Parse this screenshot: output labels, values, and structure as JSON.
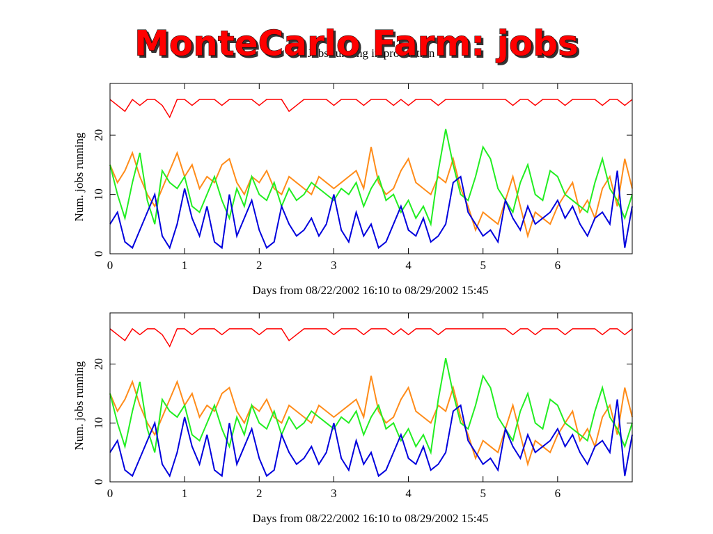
{
  "title": "MonteCarlo Farm: jobs",
  "chart_data": [
    {
      "type": "line",
      "title": "Jobs running in production",
      "xlabel": "Days from 08/22/2002 16:10 to 08/29/2002 15:45",
      "ylabel": "Num. jobs running",
      "xlim": [
        0,
        7
      ],
      "ylim": [
        0,
        28.7
      ],
      "xticks": [
        0,
        1,
        2,
        3,
        4,
        5,
        6
      ],
      "yticks": [
        0,
        10,
        20
      ],
      "x": [
        0,
        0.1,
        0.2,
        0.3,
        0.4,
        0.5,
        0.6,
        0.7,
        0.8,
        0.9,
        1,
        1.1,
        1.2,
        1.3,
        1.4,
        1.5,
        1.6,
        1.7,
        1.8,
        1.9,
        2,
        2.1,
        2.2,
        2.3,
        2.4,
        2.5,
        2.6,
        2.7,
        2.8,
        2.9,
        3,
        3.1,
        3.2,
        3.3,
        3.4,
        3.5,
        3.6,
        3.7,
        3.8,
        3.9,
        4,
        4.1,
        4.2,
        4.3,
        4.4,
        4.5,
        4.6,
        4.7,
        4.8,
        4.9,
        5,
        5.1,
        5.2,
        5.3,
        5.4,
        5.5,
        5.6,
        5.7,
        5.8,
        5.9,
        6,
        6.1,
        6.2,
        6.3,
        6.4,
        6.5,
        6.6,
        6.7,
        6.8,
        6.9,
        7
      ],
      "series": [
        {
          "color": "#ff0000",
          "values": [
            26,
            25,
            24,
            26,
            25,
            26,
            26,
            25,
            23,
            26,
            26,
            25,
            26,
            26,
            26,
            25,
            26,
            26,
            26,
            26,
            25,
            26,
            26,
            26,
            24,
            25,
            26,
            26,
            26,
            26,
            25,
            26,
            26,
            26,
            25,
            26,
            26,
            26,
            25,
            26,
            25,
            26,
            26,
            26,
            25,
            26,
            26,
            26,
            26,
            26,
            26,
            26,
            26,
            26,
            25,
            26,
            26,
            25,
            26,
            26,
            26,
            25,
            26,
            26,
            26,
            26,
            25,
            26,
            26,
            25,
            26
          ]
        },
        {
          "color": "#ff8c1a",
          "values": [
            15,
            12,
            14,
            17,
            13,
            10,
            8,
            11,
            14,
            17,
            13,
            15,
            11,
            13,
            12,
            15,
            16,
            12,
            10,
            13,
            12,
            14,
            11,
            10,
            13,
            12,
            11,
            10,
            13,
            12,
            11,
            12,
            13,
            14,
            11,
            18,
            12,
            10,
            11,
            14,
            16,
            12,
            11,
            10,
            13,
            12,
            16,
            11,
            8,
            4,
            7,
            6,
            5,
            9,
            13,
            8,
            3,
            7,
            6,
            5,
            8,
            10,
            12,
            7,
            9,
            6,
            11,
            13,
            8,
            16,
            11
          ]
        },
        {
          "color": "#22ee22",
          "values": [
            15,
            10,
            6,
            12,
            17,
            9,
            5,
            14,
            12,
            11,
            13,
            8,
            7,
            10,
            13,
            9,
            6,
            11,
            8,
            13,
            10,
            9,
            12,
            8,
            11,
            9,
            10,
            12,
            11,
            10,
            9,
            11,
            10,
            12,
            8,
            11,
            13,
            9,
            10,
            7,
            9,
            6,
            8,
            5,
            14,
            21,
            15,
            10,
            9,
            13,
            18,
            16,
            11,
            9,
            7,
            12,
            15,
            10,
            9,
            14,
            13,
            10,
            9,
            8,
            7,
            12,
            16,
            11,
            9,
            6,
            10
          ]
        },
        {
          "color": "#0000dd",
          "values": [
            5,
            7,
            2,
            1,
            4,
            7,
            10,
            3,
            1,
            5,
            11,
            6,
            3,
            8,
            2,
            1,
            10,
            3,
            6,
            9,
            4,
            1,
            2,
            8,
            5,
            3,
            4,
            6,
            3,
            5,
            10,
            4,
            2,
            7,
            3,
            5,
            1,
            2,
            5,
            8,
            4,
            3,
            6,
            2,
            3,
            5,
            12,
            13,
            7,
            5,
            3,
            4,
            2,
            9,
            6,
            4,
            8,
            5,
            6,
            7,
            9,
            6,
            8,
            5,
            3,
            6,
            7,
            5,
            14,
            1,
            8
          ]
        }
      ]
    },
    {
      "type": "line",
      "xlabel": "Days from 08/22/2002 16:10 to 08/29/2002 15:45",
      "ylabel": "Num. jobs running",
      "xlim": [
        0,
        7
      ],
      "ylim": [
        0,
        28.7
      ],
      "xticks": [
        0,
        1,
        2,
        3,
        4,
        5,
        6
      ],
      "yticks": [
        0,
        10,
        20
      ],
      "x": [
        0,
        0.1,
        0.2,
        0.3,
        0.4,
        0.5,
        0.6,
        0.7,
        0.8,
        0.9,
        1,
        1.1,
        1.2,
        1.3,
        1.4,
        1.5,
        1.6,
        1.7,
        1.8,
        1.9,
        2,
        2.1,
        2.2,
        2.3,
        2.4,
        2.5,
        2.6,
        2.7,
        2.8,
        2.9,
        3,
        3.1,
        3.2,
        3.3,
        3.4,
        3.5,
        3.6,
        3.7,
        3.8,
        3.9,
        4,
        4.1,
        4.2,
        4.3,
        4.4,
        4.5,
        4.6,
        4.7,
        4.8,
        4.9,
        5,
        5.1,
        5.2,
        5.3,
        5.4,
        5.5,
        5.6,
        5.7,
        5.8,
        5.9,
        6,
        6.1,
        6.2,
        6.3,
        6.4,
        6.5,
        6.6,
        6.7,
        6.8,
        6.9,
        7
      ],
      "series": [
        {
          "color": "#ff0000",
          "values": [
            26,
            25,
            24,
            26,
            25,
            26,
            26,
            25,
            23,
            26,
            26,
            25,
            26,
            26,
            26,
            25,
            26,
            26,
            26,
            26,
            25,
            26,
            26,
            26,
            24,
            25,
            26,
            26,
            26,
            26,
            25,
            26,
            26,
            26,
            25,
            26,
            26,
            26,
            25,
            26,
            25,
            26,
            26,
            26,
            25,
            26,
            26,
            26,
            26,
            26,
            26,
            26,
            26,
            26,
            25,
            26,
            26,
            25,
            26,
            26,
            26,
            25,
            26,
            26,
            26,
            26,
            25,
            26,
            26,
            25,
            26
          ]
        },
        {
          "color": "#ff8c1a",
          "values": [
            15,
            12,
            14,
            17,
            13,
            10,
            8,
            11,
            14,
            17,
            13,
            15,
            11,
            13,
            12,
            15,
            16,
            12,
            10,
            13,
            12,
            14,
            11,
            10,
            13,
            12,
            11,
            10,
            13,
            12,
            11,
            12,
            13,
            14,
            11,
            18,
            12,
            10,
            11,
            14,
            16,
            12,
            11,
            10,
            13,
            12,
            16,
            11,
            8,
            4,
            7,
            6,
            5,
            9,
            13,
            8,
            3,
            7,
            6,
            5,
            8,
            10,
            12,
            7,
            9,
            6,
            11,
            13,
            8,
            16,
            11
          ]
        },
        {
          "color": "#22ee22",
          "values": [
            15,
            10,
            6,
            12,
            17,
            9,
            5,
            14,
            12,
            11,
            13,
            8,
            7,
            10,
            13,
            9,
            6,
            11,
            8,
            13,
            10,
            9,
            12,
            8,
            11,
            9,
            10,
            12,
            11,
            10,
            9,
            11,
            10,
            12,
            8,
            11,
            13,
            9,
            10,
            7,
            9,
            6,
            8,
            5,
            14,
            21,
            15,
            10,
            9,
            13,
            18,
            16,
            11,
            9,
            7,
            12,
            15,
            10,
            9,
            14,
            13,
            10,
            9,
            8,
            7,
            12,
            16,
            11,
            9,
            6,
            10
          ]
        },
        {
          "color": "#0000dd",
          "values": [
            5,
            7,
            2,
            1,
            4,
            7,
            10,
            3,
            1,
            5,
            11,
            6,
            3,
            8,
            2,
            1,
            10,
            3,
            6,
            9,
            4,
            1,
            2,
            8,
            5,
            3,
            4,
            6,
            3,
            5,
            10,
            4,
            2,
            7,
            3,
            5,
            1,
            2,
            5,
            8,
            4,
            3,
            6,
            2,
            3,
            5,
            12,
            13,
            7,
            5,
            3,
            4,
            2,
            9,
            6,
            4,
            8,
            5,
            6,
            7,
            9,
            6,
            8,
            5,
            3,
            6,
            7,
            5,
            14,
            1,
            8
          ]
        }
      ]
    }
  ]
}
